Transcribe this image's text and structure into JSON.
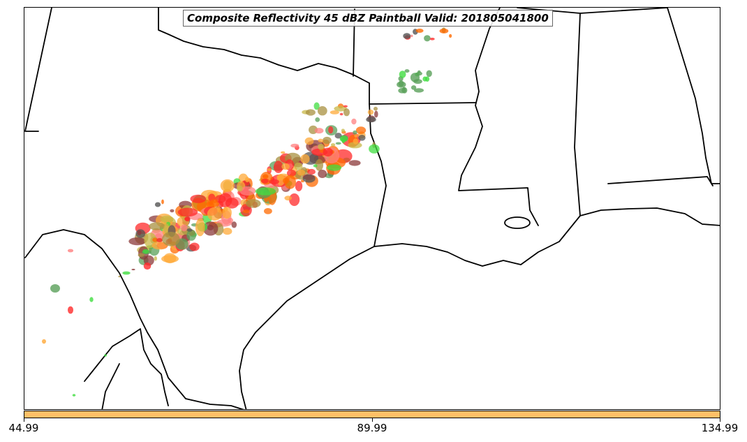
{
  "map": {
    "title": "Composite Reflectivity 45 dBZ Paintball Valid: 201805041800"
  },
  "colorbar": {
    "color": "#ffc067",
    "ticks": [
      "44.99",
      "89.99",
      "134.99"
    ]
  },
  "paintball_colors": [
    "#ff2a2a",
    "#ff6a00",
    "#ffa938",
    "#5aa05a",
    "#40dd40",
    "#a89040",
    "#c8b848",
    "#8b3a3a",
    "#555555",
    "#ff8080"
  ]
}
